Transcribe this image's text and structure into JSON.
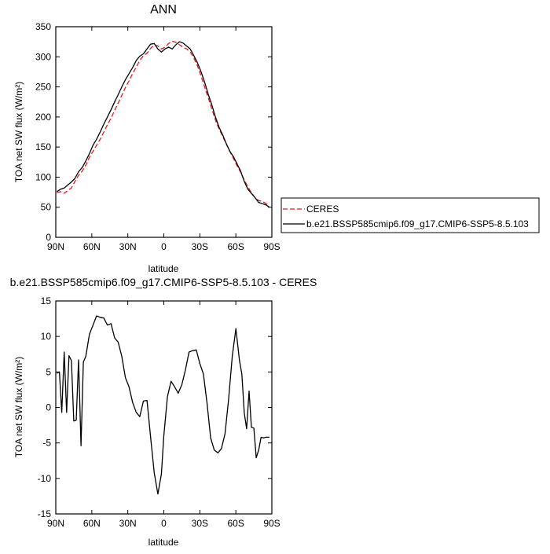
{
  "chart_data": [
    {
      "type": "line",
      "title": "ANN",
      "xlabel": "latitude",
      "ylabel": "TOA net SW flux (W/m²)",
      "ylim": [
        0,
        350
      ],
      "yticks": [
        0,
        50,
        100,
        150,
        200,
        250,
        300,
        350
      ],
      "xlim": [
        90,
        -90
      ],
      "xticks": [
        90,
        60,
        30,
        0,
        -30,
        -60,
        -90
      ],
      "xticklabels": [
        "90N",
        "60N",
        "30N",
        "0",
        "30S",
        "60S",
        "90S"
      ],
      "legend": {
        "position": "right",
        "entries": [
          "CERES",
          "b.e21.BSSP585cmip6.f09_g17.CMIP6-SSP5-8.5.103"
        ]
      },
      "series": [
        {
          "name": "CERES",
          "color": "#e31a1c",
          "dash": "dashed",
          "x": [
            89,
            86,
            83,
            80,
            77,
            74,
            71,
            68,
            65,
            62,
            59,
            56,
            53,
            50,
            47,
            44,
            41,
            38,
            35,
            32,
            29,
            26,
            23,
            20,
            17,
            14,
            11,
            8,
            5,
            2,
            -1,
            -4,
            -7,
            -10,
            -13,
            -16,
            -19,
            -22,
            -25,
            -28,
            -31,
            -34,
            -37,
            -40,
            -43,
            -46,
            -49,
            -52,
            -55,
            -58,
            -61,
            -64,
            -67,
            -70,
            -73,
            -76,
            -79,
            -82,
            -85,
            -88
          ],
          "values": [
            74,
            76,
            73,
            78,
            82,
            93,
            103,
            110,
            120,
            133,
            143,
            153,
            163,
            175,
            187,
            198,
            211,
            223,
            236,
            249,
            260,
            272,
            283,
            294,
            302,
            306,
            314,
            320,
            318,
            313,
            316,
            322,
            326,
            324,
            320,
            316,
            313,
            308,
            298,
            285,
            268,
            250,
            232,
            213,
            195,
            180,
            168,
            155,
            143,
            131,
            119,
            108,
            95,
            84,
            74,
            66,
            61,
            60,
            56,
            53
          ]
        },
        {
          "name": "b.e21.BSSP585cmip6.f09_g17.CMIP6-SSP5-8.5.103",
          "color": "#000000",
          "dash": "solid",
          "x": [
            89,
            86,
            83,
            80,
            77,
            74,
            71,
            68,
            65,
            62,
            59,
            56,
            53,
            50,
            47,
            44,
            41,
            38,
            35,
            32,
            29,
            26,
            23,
            20,
            17,
            14,
            11,
            8,
            5,
            2,
            -1,
            -4,
            -7,
            -10,
            -13,
            -16,
            -19,
            -22,
            -25,
            -28,
            -31,
            -34,
            -37,
            -40,
            -43,
            -46,
            -49,
            -52,
            -55,
            -58,
            -61,
            -64,
            -67,
            -70,
            -73,
            -76,
            -79,
            -82,
            -85,
            -88
          ],
          "values": [
            76,
            80,
            82,
            87,
            92,
            98,
            109,
            116,
            127,
            139,
            153,
            163,
            175,
            188,
            200,
            212,
            225,
            237,
            250,
            262,
            272,
            282,
            294,
            301,
            305,
            313,
            321,
            322,
            313,
            308,
            313,
            316,
            313,
            320,
            325,
            323,
            318,
            313,
            302,
            290,
            275,
            258,
            238,
            220,
            200,
            183,
            170,
            156,
            143,
            134,
            122,
            110,
            93,
            80,
            73,
            66,
            58,
            56,
            54,
            50
          ]
        }
      ]
    },
    {
      "type": "line",
      "title": "b.e21.BSSP585cmip6.f09_g17.CMIP6-SSP5-8.5.103 - CERES",
      "xlabel": "latitude",
      "ylabel": "TOA net SW flux (W/m²)",
      "ylim": [
        -15,
        15
      ],
      "yticks": [
        -15,
        -10,
        -5,
        0,
        5,
        10,
        15
      ],
      "xlim": [
        90,
        -90
      ],
      "xticks": [
        90,
        60,
        30,
        0,
        -30,
        -60,
        -90
      ],
      "xticklabels": [
        "90N",
        "60N",
        "30N",
        "0",
        "30S",
        "60S",
        "90S"
      ],
      "series": [
        {
          "color": "#000000",
          "x": [
            89,
            87,
            85,
            83,
            81,
            79,
            77,
            75,
            73,
            71,
            69,
            67,
            65,
            62,
            59,
            56,
            53,
            50,
            47,
            44,
            41,
            38,
            35,
            32,
            29,
            26,
            23,
            20,
            17,
            14,
            11,
            8,
            5,
            2,
            0,
            -3,
            -6,
            -9,
            -12,
            -15,
            -18,
            -21,
            -24,
            -27,
            -30,
            -33,
            -36,
            -39,
            -42,
            -45,
            -48,
            -51,
            -54,
            -57,
            -60,
            -63,
            -65,
            -67,
            -69,
            -71,
            -73,
            -75,
            -77,
            -79,
            -81,
            -83,
            -85,
            -88
          ],
          "values": [
            4.8,
            5.0,
            -0.7,
            7.8,
            -0.7,
            7.3,
            6.6,
            -1.9,
            -1.8,
            6.7,
            -5.4,
            6.4,
            7.2,
            10.3,
            11.6,
            12.9,
            12.7,
            12.6,
            11.6,
            11.8,
            9.8,
            9.2,
            7.2,
            4.2,
            2.9,
            0.7,
            -0.7,
            -1.3,
            0.9,
            1.0,
            -4.2,
            -9.2,
            -12.2,
            -9.4,
            -4.0,
            1.5,
            3.7,
            2.9,
            2.0,
            3.2,
            5.3,
            7.8,
            8.0,
            8.1,
            6.2,
            4.7,
            0.6,
            -4.3,
            -6.0,
            -6.4,
            -5.8,
            -3.7,
            1.2,
            7.2,
            11.1,
            6.6,
            4.7,
            -0.8,
            -3.0,
            2.3,
            -2.8,
            -2.9,
            -7.1,
            -6.0,
            -4.2,
            -4.3,
            -4.2,
            -4.2
          ]
        }
      ]
    }
  ]
}
